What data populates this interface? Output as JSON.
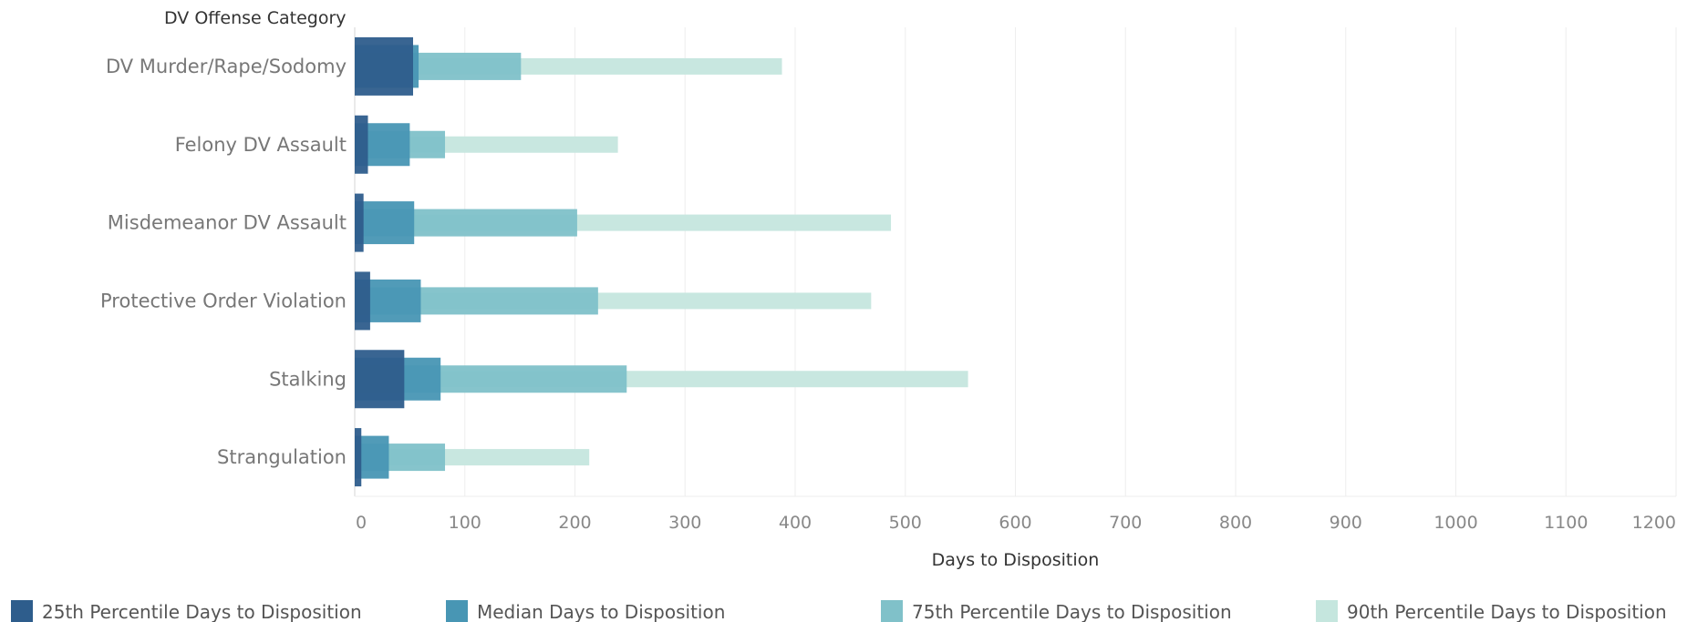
{
  "chart_data": {
    "type": "bar",
    "row_header": "DV Offense Category",
    "xlabel": "Days to Disposition",
    "xlim": [
      0,
      1200
    ],
    "xticks": [
      "0",
      "100",
      "200",
      "300",
      "400",
      "500",
      "600",
      "700",
      "800",
      "900",
      "1000",
      "1100",
      "1200"
    ],
    "grid": true,
    "legend_position": "bottom",
    "categories": [
      "DV Murder/Rape/Sodomy",
      "Felony DV Assault",
      "Misdemeanor DV Assault",
      "Protective Order Violation",
      "Stalking",
      "Strangulation"
    ],
    "series": [
      {
        "name": "90th Percentile Days to Disposition",
        "color": "#c5e6de",
        "values": [
          388,
          239,
          487,
          469,
          557,
          213
        ]
      },
      {
        "name": "75th Percentile Days to Disposition",
        "color": "#80c1c9",
        "values": [
          151,
          82,
          202,
          221,
          247,
          82
        ]
      },
      {
        "name": "Median Days to Disposition",
        "color": "#4896b4",
        "values": [
          58,
          50,
          54,
          60,
          78,
          31
        ]
      },
      {
        "name": "25th Percentile Days to Disposition",
        "color": "#2e5d8c",
        "values": [
          53,
          12,
          8,
          14,
          45,
          6
        ]
      }
    ],
    "legend_order": [
      "25th Percentile Days to Disposition",
      "Median Days to Disposition",
      "75th Percentile Days to Disposition",
      "90th Percentile Days to Disposition"
    ]
  }
}
